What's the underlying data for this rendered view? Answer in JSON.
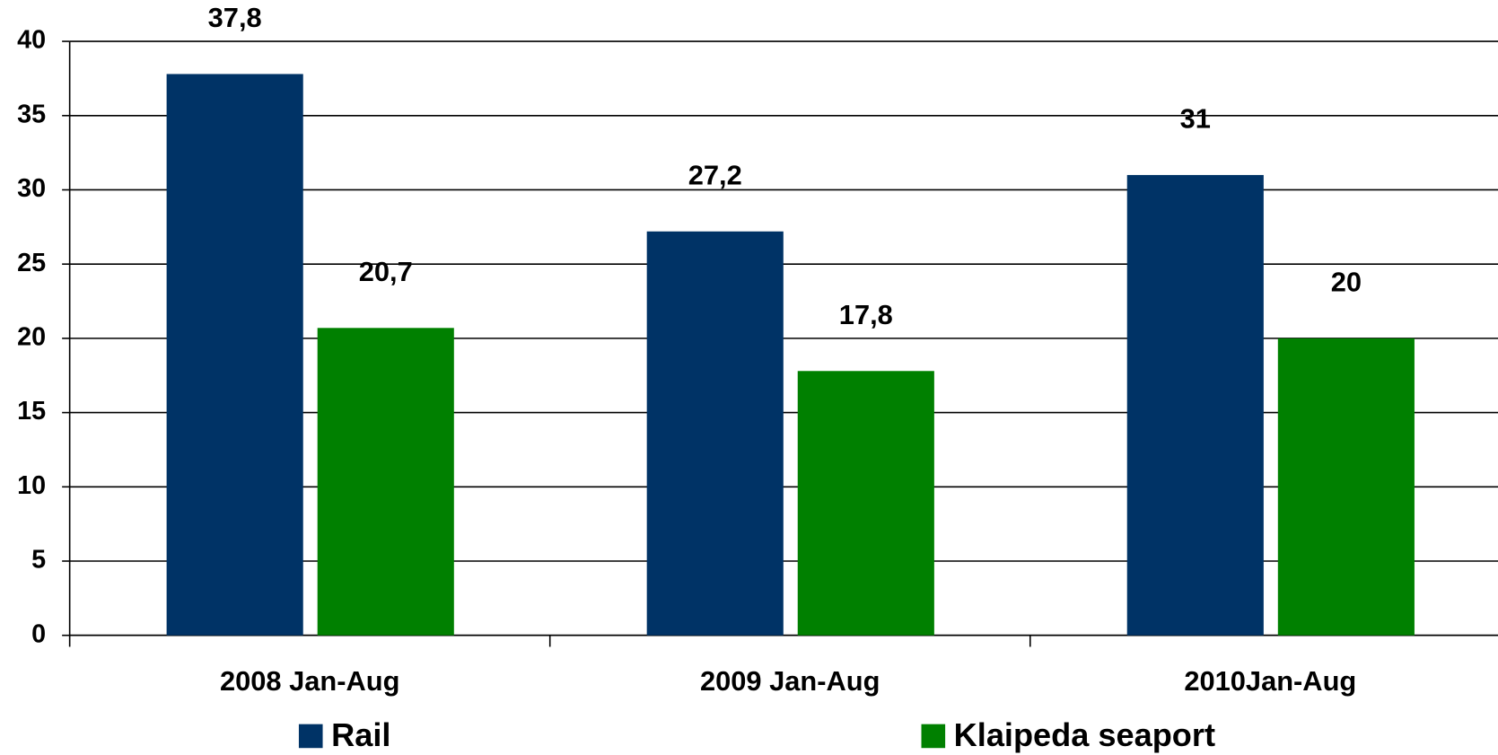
{
  "chart_data": {
    "type": "bar",
    "categories": [
      "2008 Jan-Aug",
      "2009 Jan-Aug",
      "2010Jan-Aug"
    ],
    "series": [
      {
        "name": "Rail",
        "color": "#003366",
        "values": [
          37.8,
          27.2,
          31
        ],
        "value_labels": [
          "37,8",
          "27,2",
          "31"
        ]
      },
      {
        "name": "Klaipeda seaport",
        "color": "#008000",
        "values": [
          20.7,
          17.8,
          20
        ],
        "value_labels": [
          "20,7",
          "17,8",
          "20"
        ]
      }
    ],
    "ylim": [
      0,
      40
    ],
    "yticks": [
      0,
      5,
      10,
      15,
      20,
      25,
      30,
      35,
      40
    ],
    "grid": true,
    "legend": "bottom"
  }
}
